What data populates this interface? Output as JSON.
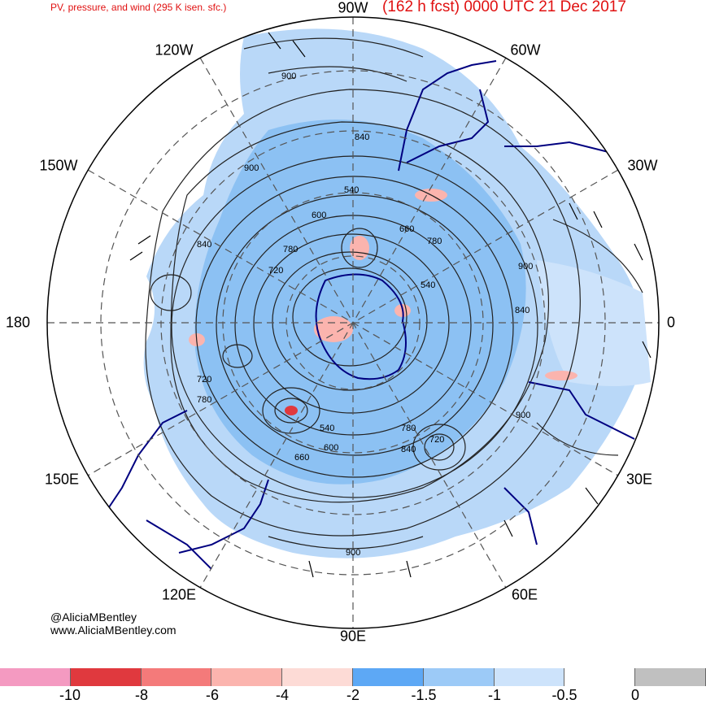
{
  "header": {
    "subtitle": "PV, pressure, and wind (295 K isen. sfc.)",
    "title": "(162 h fcst) 0000 UTC 21 Dec 2017"
  },
  "longitude_labels": {
    "lon_90W": "90W",
    "lon_60W": "60W",
    "lon_30W": "30W",
    "lon_0": "0",
    "lon_30E": "30E",
    "lon_60E": "60E",
    "lon_90E": "90E",
    "lon_120E": "120E",
    "lon_150E": "150E",
    "lon_180": "180",
    "lon_150W": "150W",
    "lon_120W": "120W"
  },
  "contour_labels": [
    "900",
    "840",
    "900",
    "540",
    "600",
    "840",
    "720",
    "660",
    "780",
    "900",
    "540",
    "840",
    "720",
    "780",
    "540",
    "600",
    "660",
    "780",
    "840",
    "720",
    "900",
    "900",
    "780"
  ],
  "credits": {
    "handle": "@AliciaMBentley",
    "website": "www.AliciaMBentley.com"
  },
  "colorbar": {
    "colors": [
      "#f49ac1",
      "#e0393e",
      "#f47a7a",
      "#fbb4ae",
      "#fddbd6",
      "#5da8f5",
      "#9ccaf7",
      "#cde3fb",
      "#ffffff",
      "#c0c0c0"
    ],
    "ticks": [
      "-10",
      "-8",
      "-6",
      "-4",
      "-2",
      "-1.5",
      "-1",
      "-0.5",
      "0"
    ]
  },
  "colors": {
    "title": "#e01010",
    "coastline": "#000080",
    "pv_fill": "#9ccaf7"
  }
}
